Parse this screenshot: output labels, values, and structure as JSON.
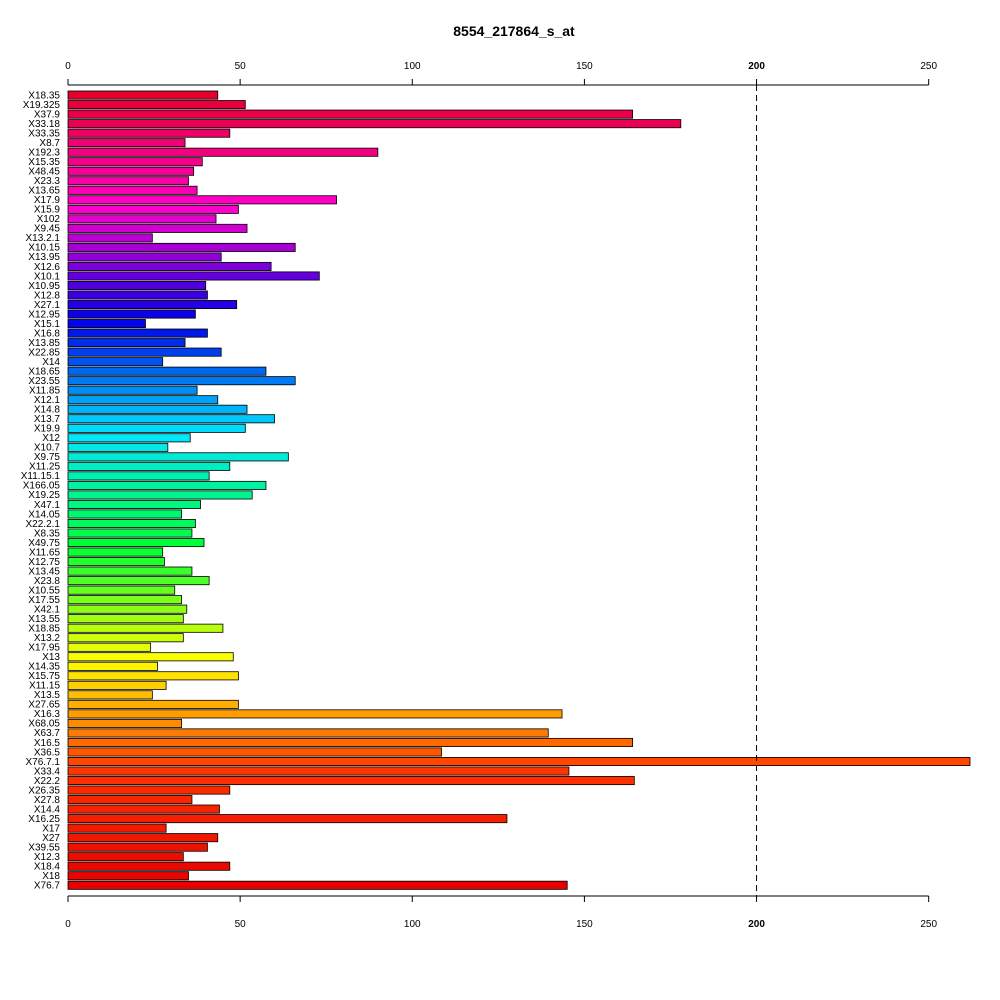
{
  "chart_data": {
    "type": "bar",
    "orientation": "horizontal",
    "title": "8554_217864_s_at",
    "xlabel": "",
    "ylabel": "",
    "xlim": [
      0,
      262
    ],
    "x_ticks": [
      0,
      50,
      100,
      150,
      200,
      250
    ],
    "reference_line": 200,
    "grid": false,
    "categories": [
      "X18.35",
      "X19.325",
      "X37.9",
      "X33.18",
      "X33.35",
      "X8.7",
      "X192.3",
      "X15.35",
      "X48.45",
      "X23.3",
      "X13.65",
      "X17.9",
      "X15.9",
      "X102",
      "X9.45",
      "X13.2.1",
      "X10.15",
      "X13.95",
      "X12.6",
      "X10.1",
      "X10.95",
      "X12.8",
      "X27.1",
      "X12.95",
      "X15.1",
      "X16.8",
      "X13.85",
      "X22.85",
      "X14",
      "X18.65",
      "X23.55",
      "X11.85",
      "X12.1",
      "X14.8",
      "X13.7",
      "X19.9",
      "X12",
      "X10.7",
      "X9.75",
      "X11.25",
      "X11.15.1",
      "X166.05",
      "X19.25",
      "X47.1",
      "X14.05",
      "X22.2.1",
      "X8.35",
      "X49.75",
      "X11.65",
      "X12.75",
      "X13.45",
      "X23.8",
      "X10.55",
      "X17.55",
      "X42.1",
      "X13.55",
      "X18.85",
      "X13.2",
      "X17.95",
      "X13",
      "X14.35",
      "X15.75",
      "X11.15",
      "X13.5",
      "X27.65",
      "X16.3",
      "X68.05",
      "X63.7",
      "X16.5",
      "X36.5",
      "X76.7.1",
      "X33.4",
      "X22.2",
      "X26.35",
      "X27.8",
      "X14.4",
      "X16.25",
      "X17",
      "X27",
      "X39.55",
      "X12.3",
      "X18.4",
      "X18",
      "X76.7"
    ],
    "values": [
      43.5,
      51.5,
      164,
      178,
      47,
      34,
      90,
      39,
      36.5,
      35,
      37.5,
      78,
      49.5,
      43,
      52,
      24.5,
      66,
      44.5,
      59,
      73,
      40,
      40.5,
      49,
      37,
      22.5,
      40.5,
      34,
      44.5,
      27.5,
      57.5,
      66,
      37.5,
      43.5,
      52,
      60,
      51.5,
      35.5,
      29,
      64,
      47,
      41,
      57.5,
      53.5,
      38.5,
      33,
      37,
      36,
      39.5,
      27.5,
      28,
      36,
      41,
      31,
      33,
      34.5,
      33.5,
      45,
      33.5,
      24,
      48,
      26,
      49.5,
      28.5,
      24.5,
      49.5,
      143.5,
      33,
      139.5,
      164,
      108.5,
      262,
      145.5,
      164.5,
      47,
      36,
      44,
      127.5,
      28.5,
      43.5,
      40.5,
      33.5,
      47,
      35,
      145
    ],
    "colors": [
      "#e60019",
      "#e60033",
      "#e6004d",
      "#e60068",
      "#e60082",
      "#e6009c",
      "#e600b6",
      "#e600d0",
      "#e600e6",
      "#d000e6",
      "#b600e6",
      "#9c00e6",
      "#8200e6",
      "#6800e6",
      "#4d00e6",
      "#3300e6",
      "#1900e6",
      "#0000e6",
      "#0019e6",
      "#0033e6",
      "#004de6",
      "#0068e6",
      "#0082e6",
      "#009ce6",
      "#00b6e6",
      "#00d0e6",
      "#00e6e6",
      "#00e6d0",
      "#00e6b6",
      "#00e69c",
      "#00e682",
      "#00e668",
      "#00e64d",
      "#00e633",
      "#00e619",
      "#00e600",
      "#19e600",
      "#33e600",
      "#4de600",
      "#68e600",
      "#82e600",
      "#9ce600",
      "#b6e600",
      "#d0e600",
      "#e6e600",
      "#ffff00",
      "#ffec00",
      "#ffd900",
      "#ffc600",
      "#ffb300",
      "#ffa000",
      "#ff8c00",
      "#ff7900",
      "#ff6600",
      "#ff5300",
      "#ff4000",
      "#ff2c00",
      "#ff1900",
      "#ff0600",
      "#e60000"
    ],
    "color_stops": [
      "#e6002e",
      "#ff00cc",
      "#0000e6",
      "#00e6ff",
      "#00ff33",
      "#ffff00",
      "#ff3300",
      "#e60000"
    ]
  }
}
